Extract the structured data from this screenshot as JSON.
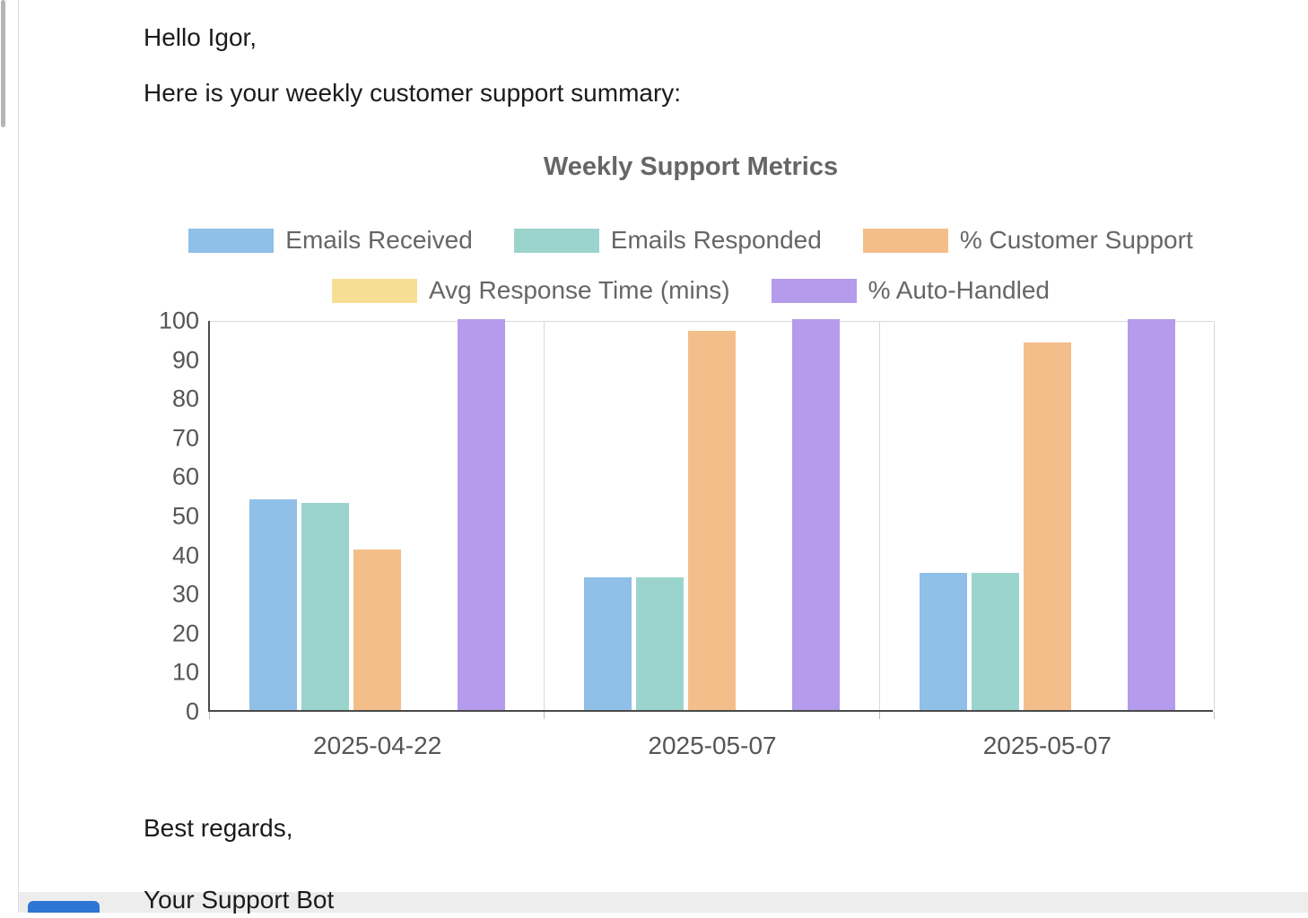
{
  "email": {
    "greeting": "Hello Igor,",
    "intro": "Here is your weekly customer support summary:",
    "signoff": [
      "Best regards,",
      "Your Support Bot"
    ]
  },
  "chart_data": {
    "type": "bar",
    "title": "Weekly Support Metrics",
    "categories": [
      "2025-04-22",
      "2025-05-07",
      "2025-05-07"
    ],
    "series": [
      {
        "name": "Emails Received",
        "color": "#90BFE8",
        "values": [
          54,
          34,
          35
        ]
      },
      {
        "name": "Emails Responded",
        "color": "#9BD4CC",
        "values": [
          53,
          34,
          35
        ]
      },
      {
        "name": "% Customer Support",
        "color": "#F4BE8A",
        "values": [
          41,
          97,
          94
        ]
      },
      {
        "name": "Avg Response Time (mins)",
        "color": "#F6DF95",
        "values": [
          0,
          0,
          0
        ]
      },
      {
        "name": "% Auto-Handled",
        "color": "#B59BEB",
        "values": [
          100,
          100,
          100
        ]
      }
    ],
    "ylim": [
      0,
      100
    ],
    "ytick_step": 10,
    "legend_position": "top",
    "grid": "vertical lines at category boundaries, horizontal line at 100"
  },
  "chart_style": {
    "title_color": "#666666",
    "legend_text_color": "#666666",
    "tick_text_color": "#555555",
    "axis_line_color": "#4a4a4a",
    "gridline_color": "#d8d8d8"
  },
  "chrome": {
    "scrollbar_thumb_color": "#b5b5b5",
    "divider_color": "#dddddd",
    "bottom_bar_color": "#ededed",
    "partial_button_color": "#2e75d4"
  }
}
